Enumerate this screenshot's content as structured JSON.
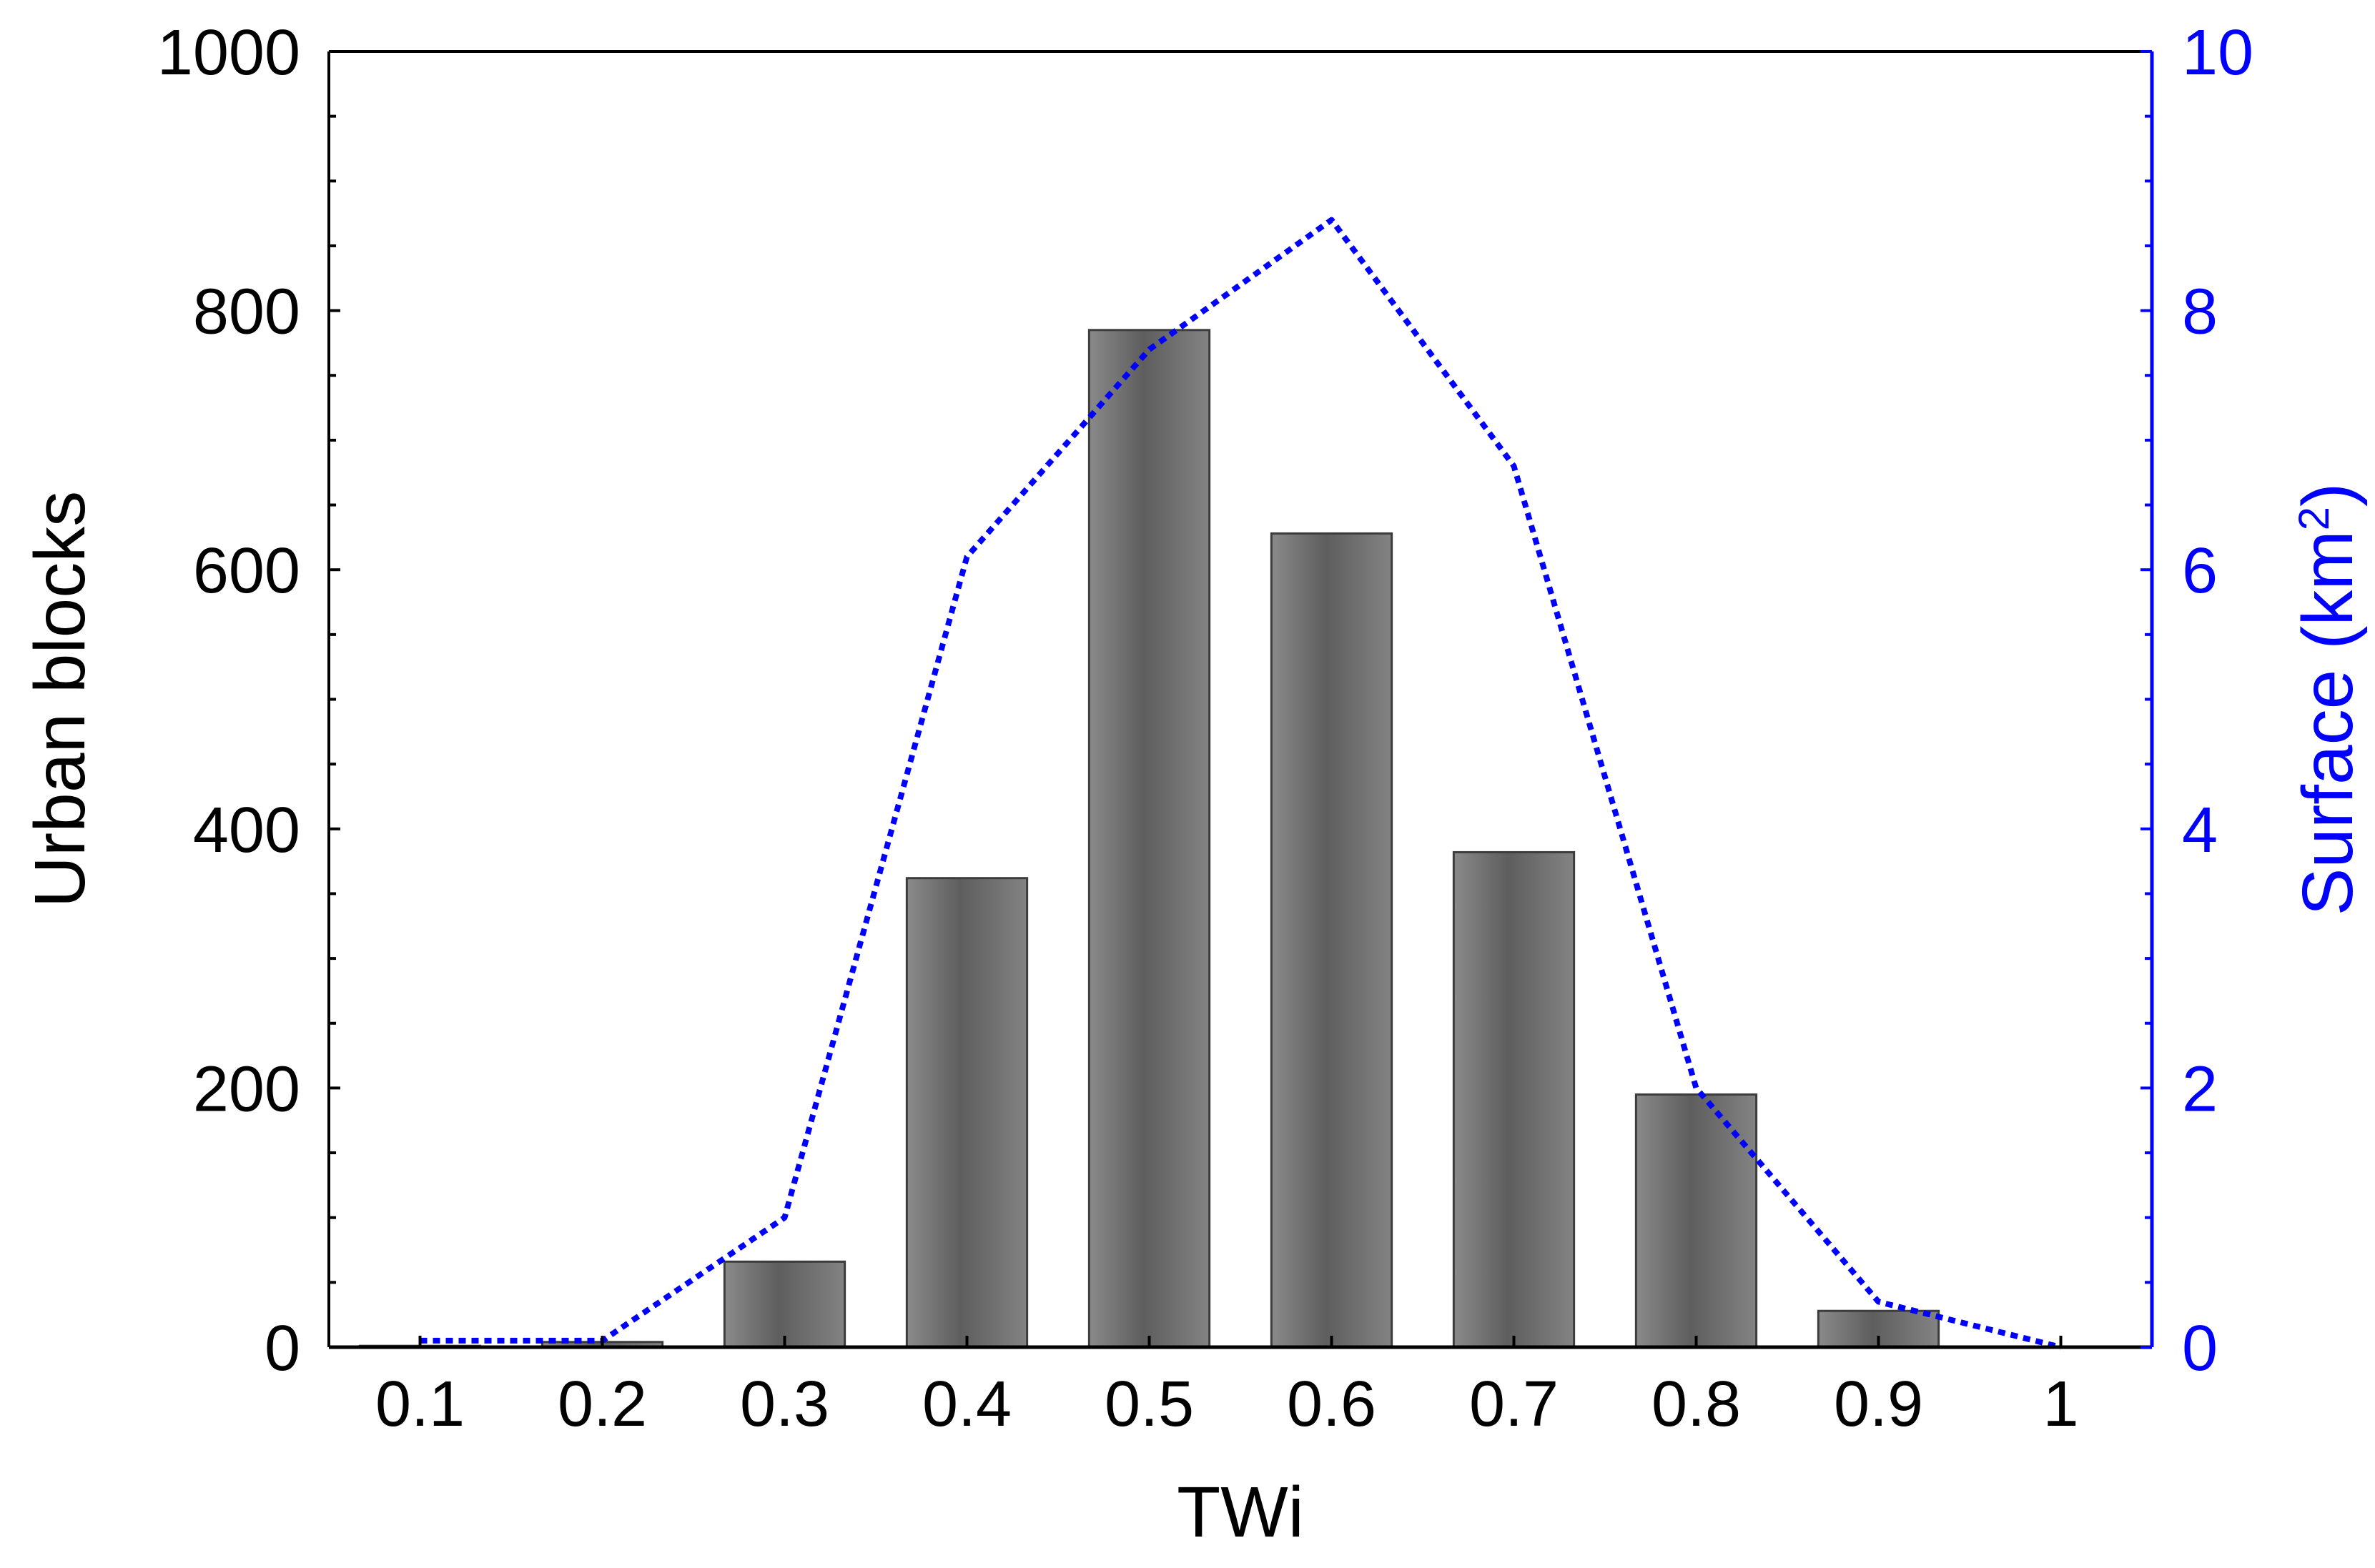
{
  "colors": {
    "left_axis": "#000000",
    "right_axis": "#0000ff",
    "bar_fill": "#6e6e6e",
    "bar_stroke": "#3c3c3c",
    "line": "#0000ff"
  },
  "chart_data": {
    "type": "bar",
    "title": "",
    "xlabel": "TWi",
    "ylabel": "Urban blocks",
    "y2label_main": "Surface (km",
    "y2label_sup": "2",
    "y2label_end": ")",
    "categories": [
      "0.1",
      "0.2",
      "0.3",
      "0.4",
      "0.5",
      "0.6",
      "0.7",
      "0.8",
      "0.9",
      "1"
    ],
    "ylim": [
      0,
      1000
    ],
    "yticks": [
      "0",
      "200",
      "400",
      "600",
      "800",
      "1000"
    ],
    "y2lim": [
      0,
      10
    ],
    "y2ticks": [
      "0",
      "2",
      "4",
      "6",
      "8",
      "10"
    ],
    "series": [
      {
        "name": "Urban blocks",
        "type": "bar",
        "axis": "left",
        "values": [
          1,
          4,
          66,
          362,
          785,
          628,
          382,
          195,
          28,
          0
        ]
      },
      {
        "name": "Surface",
        "type": "line",
        "axis": "right",
        "style": "dotted",
        "values": [
          0.05,
          0.05,
          1.0,
          6.1,
          7.7,
          8.7,
          6.8,
          2.0,
          0.35,
          0.0
        ]
      }
    ],
    "grid": false,
    "legend": "none"
  }
}
